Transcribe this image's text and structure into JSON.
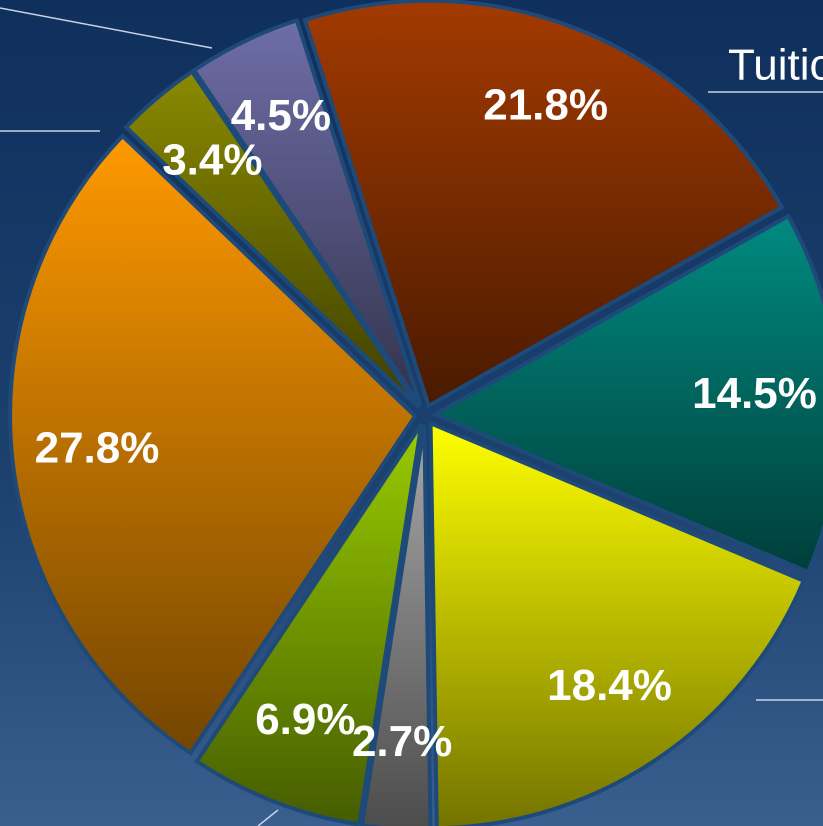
{
  "chart_data": {
    "type": "pie",
    "categories": [
      "Tuitio",
      null,
      null,
      null,
      null,
      null,
      null,
      null
    ],
    "values": [
      21.8,
      14.5,
      18.4,
      2.7,
      6.9,
      27.8,
      3.4,
      4.5
    ],
    "value_labels": [
      "21.8%",
      "14.5%",
      "18.4%",
      "2.7%",
      "6.9%",
      "27.8%",
      "3.4%",
      "4.5%"
    ],
    "colors": [
      "#a33a00",
      "#008a80",
      "#ffff00",
      "#a8a8a8",
      "#99cc00",
      "#ff9900",
      "#8a8a00",
      "#6e6ea8"
    ]
  }
}
